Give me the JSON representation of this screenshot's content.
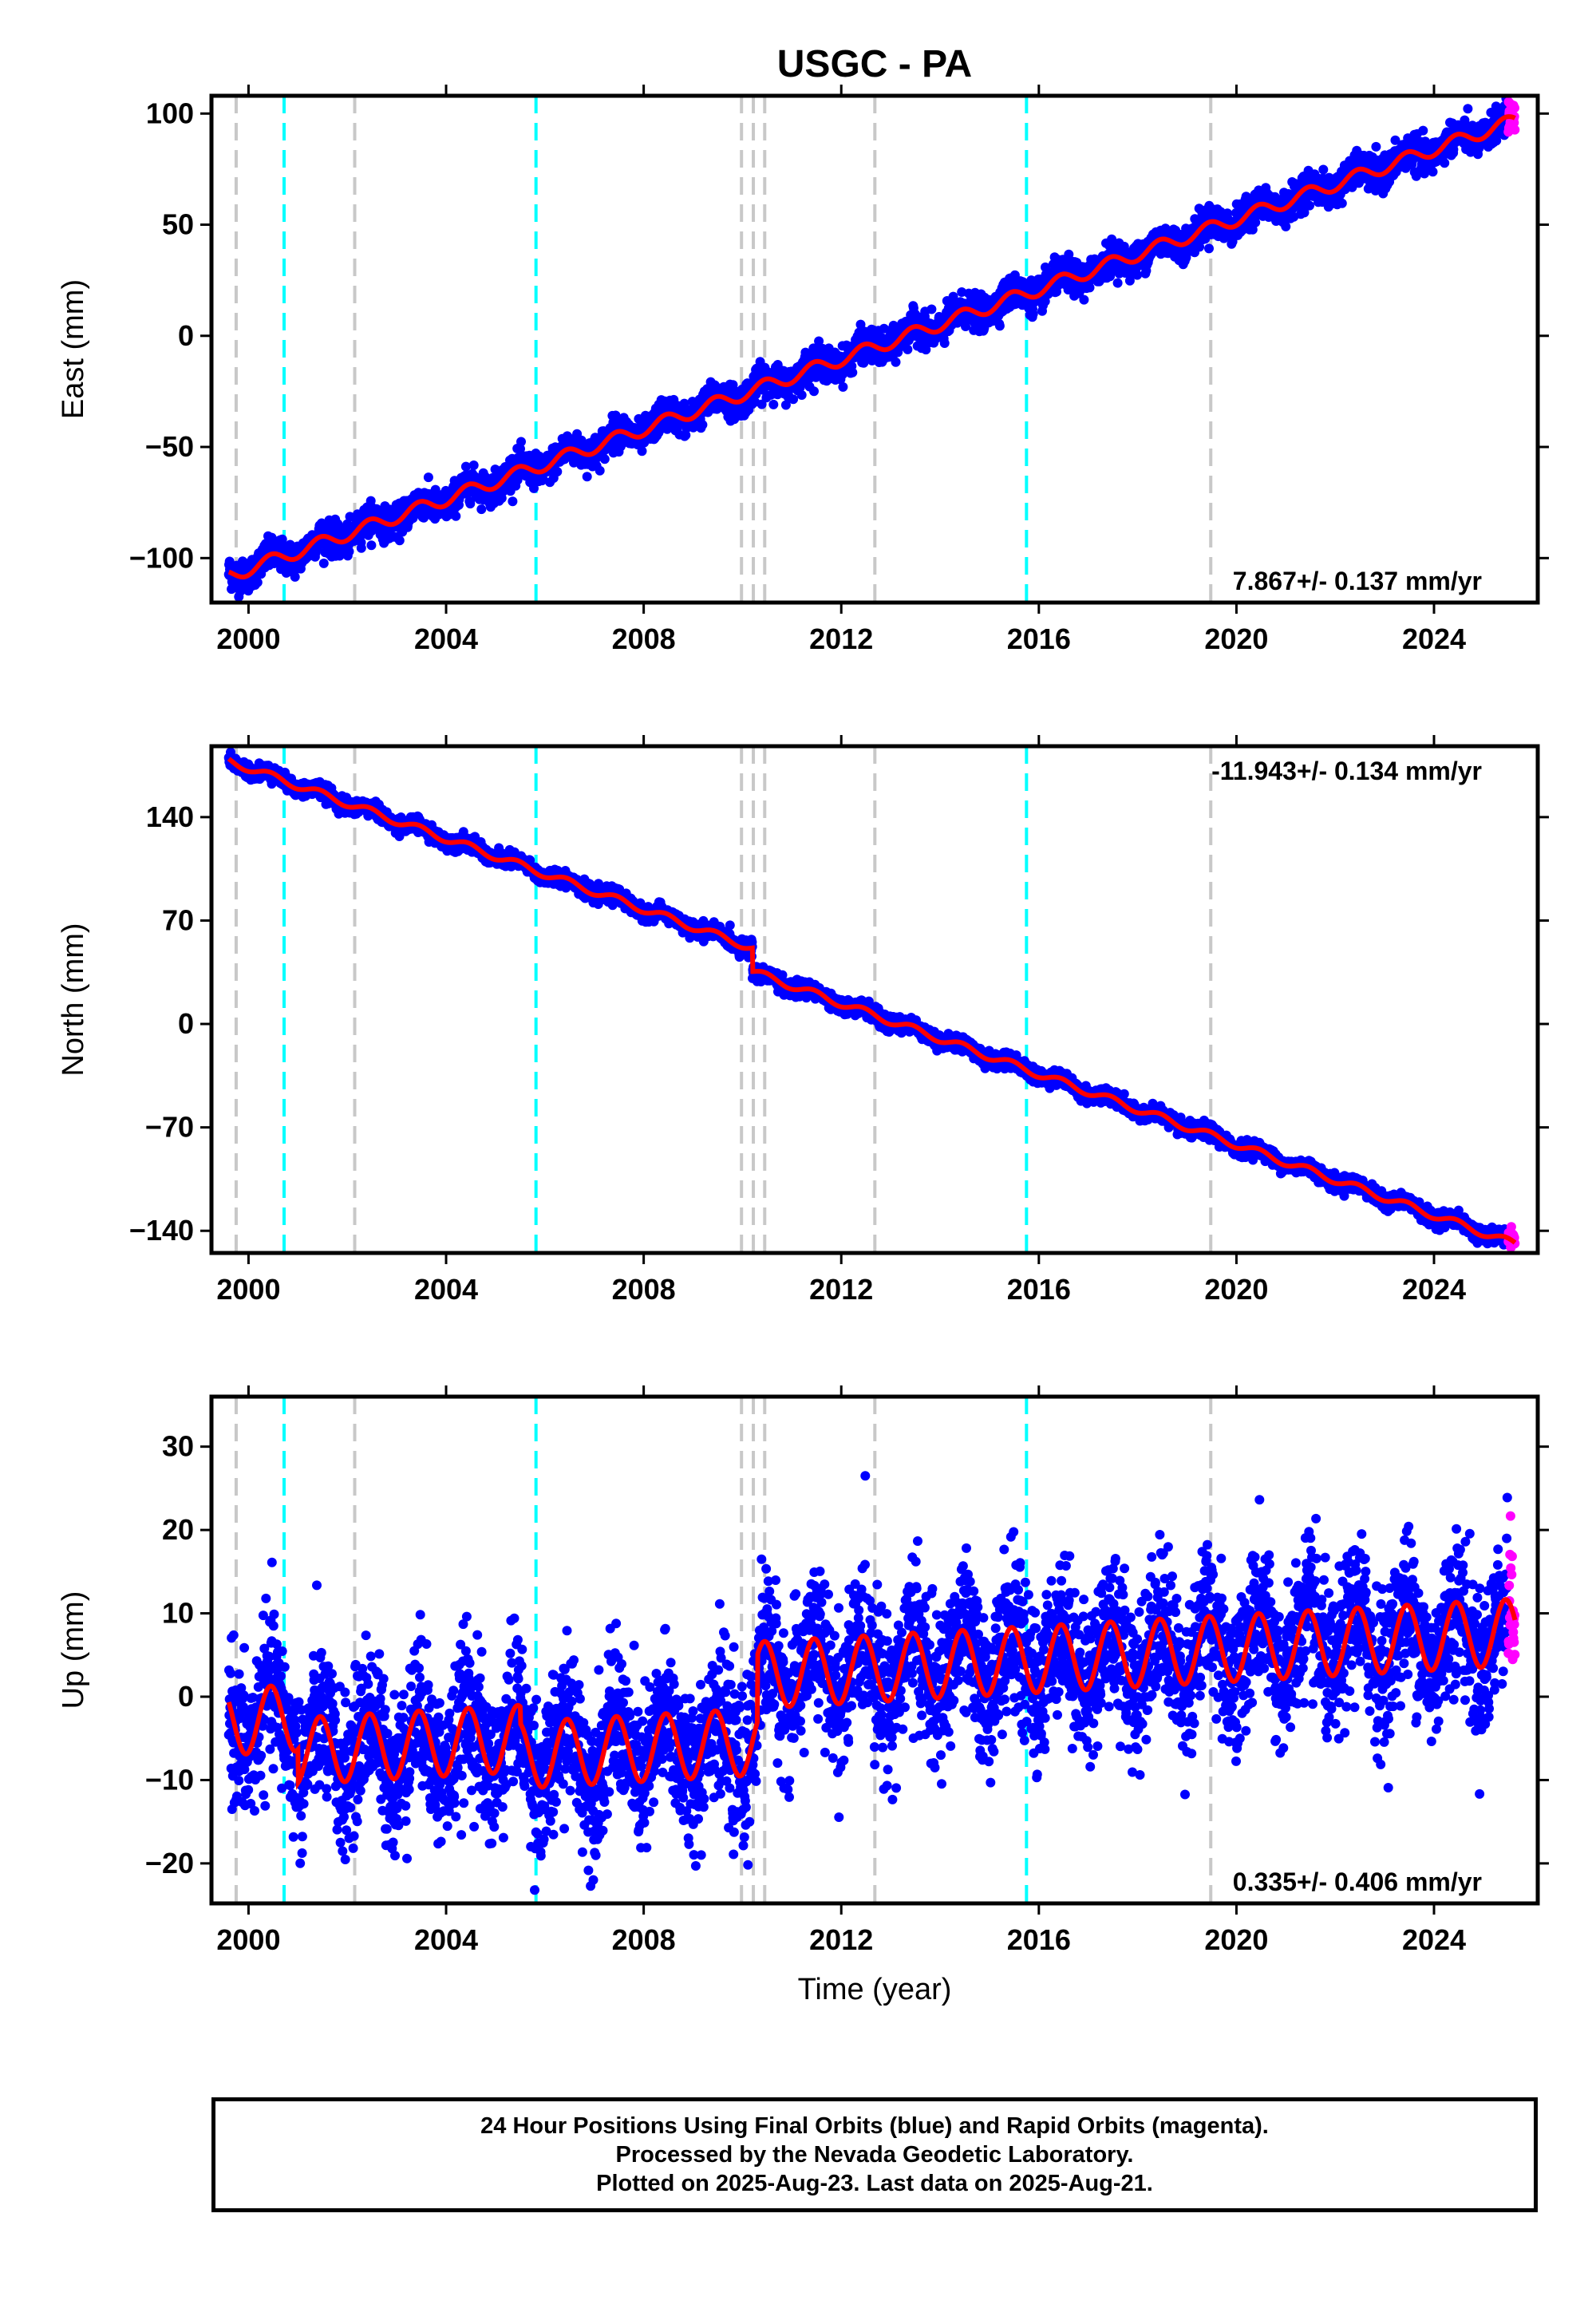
{
  "title": "USGC - PA",
  "colors": {
    "final_orbits": "#0000ff",
    "rapid_orbits": "#ff00ff",
    "model": "#ff0000",
    "equipment_change_line": "#c8c8c8",
    "earthquake_line": "#00ffff",
    "frame": "#000000"
  },
  "footer": {
    "line1": "24 Hour Positions Using Final Orbits (blue) and Rapid Orbits (magenta).",
    "line2": "Processed by the Nevada Geodetic Laboratory.",
    "line3": "Plotted on 2025-Aug-23. Last data on 2025-Aug-21."
  },
  "chart_data": [
    {
      "type": "scatter",
      "panel": "East",
      "ylabel": "East (mm)",
      "xlabel": "",
      "xlim": [
        1999.25,
        2026.1
      ],
      "ylim": [
        -120,
        108
      ],
      "xticks": [
        2000,
        2004,
        2008,
        2012,
        2016,
        2020,
        2024
      ],
      "yticks": [
        -100,
        -50,
        0,
        50,
        100
      ],
      "rate_label": "7.867+/- 0.137 mm/yr",
      "rate_position": "bottom-right",
      "grid": false,
      "start_value": -108,
      "rate_mm_per_yr": 7.867,
      "annual_amplitude": 3,
      "scatter": 3.5,
      "steps": [
        {
          "x": 2010.2,
          "size": 0
        }
      ]
    },
    {
      "type": "scatter",
      "panel": "North",
      "ylabel": "North (mm)",
      "xlabel": "",
      "xlim": [
        1999.25,
        2026.1
      ],
      "ylim": [
        -155,
        188
      ],
      "xticks": [
        2000,
        2004,
        2008,
        2012,
        2016,
        2020,
        2024
      ],
      "yticks": [
        -140,
        -70,
        0,
        70,
        140
      ],
      "rate_label": "-11.943+/- 0.134 mm/yr",
      "rate_position": "top-right",
      "grid": false,
      "start_value": 178,
      "rate_mm_per_yr": -11.943,
      "annual_amplitude": 2.5,
      "scatter": 2.5,
      "steps": [
        {
          "x": 2010.2,
          "size": -16
        }
      ]
    },
    {
      "type": "scatter",
      "panel": "Up",
      "ylabel": "Up (mm)",
      "xlabel": "Time (year)",
      "xlim": [
        1999.25,
        2026.1
      ],
      "ylim": [
        -24.8,
        36
      ],
      "xticks": [
        2000,
        2004,
        2008,
        2012,
        2016,
        2020,
        2024
      ],
      "yticks": [
        -20,
        -10,
        0,
        10,
        20,
        30
      ],
      "rate_label": "0.335+/- 0.406 mm/yr",
      "rate_position": "bottom-right",
      "grid": false,
      "start_value": -3,
      "rate_mm_per_yr": 0.335,
      "annual_amplitude": 4,
      "scatter": 4.5,
      "steps": [
        {
          "x": 2001.0,
          "size": -4
        },
        {
          "x": 2005.5,
          "size": -2
        },
        {
          "x": 2010.3,
          "size": 8
        }
      ]
    }
  ],
  "event_lines": {
    "equipment_change": [
      1999.75,
      2002.15,
      2009.98,
      2010.22,
      2010.45,
      2012.68,
      2019.48
    ],
    "earthquake": [
      2000.72,
      2005.82,
      2015.75
    ]
  },
  "data_span": {
    "start": 1999.6,
    "end": 2025.64,
    "rapid_start": 2025.5
  }
}
